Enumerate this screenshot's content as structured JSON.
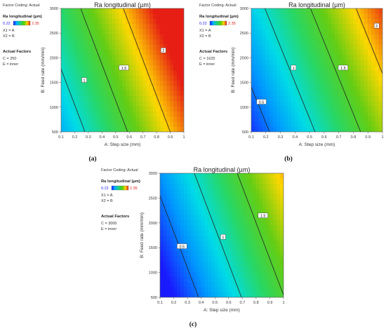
{
  "chart_data": [
    {
      "type": "heatmap",
      "panel_label": "(a)",
      "title": "Ra longitudinal (µm)",
      "factor_coding": "Factor Coding: Actual",
      "legend": {
        "title": "Ra longitudinal (µm)",
        "min": "0.22",
        "max": "2.35",
        "min_color": "#1a1aff",
        "max_color": "#e02020",
        "factor_lines": [
          "X1 = A",
          "X2 = B"
        ]
      },
      "actual_factors": {
        "title": "Actual Factors",
        "lines": [
          "C = 250",
          "E = inner"
        ]
      },
      "xlabel": "A: Step size (mm)",
      "ylabel": "B: Feed rate (mm/min)",
      "xlim": [
        0.1,
        1
      ],
      "ylim": [
        500,
        3000
      ],
      "xticks": [
        "0.1",
        "0.2",
        "0.3",
        "0.4",
        "0.5",
        "0.6",
        "0.7",
        "0.8",
        "0.9",
        "1"
      ],
      "yticks": [
        "500",
        "1000",
        "1500",
        "2000",
        "2500",
        "3000"
      ],
      "color_model": {
        "a": 0.72,
        "bx": 1.6,
        "by": 0.00022,
        "zmin": 0.22,
        "zmax": 2.35
      },
      "contours": [
        {
          "value": 1.0,
          "label": "1"
        },
        {
          "value": 1.5,
          "label": "1.5"
        },
        {
          "value": 2.0,
          "label": "2"
        }
      ],
      "contour_labels": [
        {
          "label": "1",
          "x": 0.27,
          "y": 1550
        },
        {
          "label": "1.5",
          "x": 0.56,
          "y": 1800
        },
        {
          "label": "2",
          "x": 0.85,
          "y": 2150
        }
      ]
    },
    {
      "type": "heatmap",
      "panel_label": "(b)",
      "title": "Ra longitudinal (µm)",
      "factor_coding": "Factor Coding: Actual",
      "legend": {
        "title": "Ra longitudinal (µm)",
        "min": "0.22",
        "max": "2.35",
        "min_color": "#1a1aff",
        "max_color": "#e02020",
        "factor_lines": [
          "X1 = A",
          "X2 = B"
        ]
      },
      "actual_factors": {
        "title": "Actual Factors",
        "lines": [
          "C = 1625",
          "E = inner"
        ]
      },
      "xlabel": "A: Step size (mm)",
      "ylabel": "B: Feed rate (mm/min)",
      "xlim": [
        0.1,
        1
      ],
      "ylim": [
        500,
        3000
      ],
      "xticks": [
        "0.1",
        "0.2",
        "0.3",
        "0.4",
        "0.5",
        "0.6",
        "0.7",
        "0.8",
        "0.9",
        "1"
      ],
      "yticks": [
        "500",
        "1000",
        "1500",
        "2000",
        "2500",
        "3000"
      ],
      "color_model": {
        "a": 0.3,
        "bx": 1.6,
        "by": 0.00022,
        "zmin": 0.22,
        "zmax": 2.35
      },
      "contours": [
        {
          "value": 0.5,
          "label": "0.5"
        },
        {
          "value": 1.0,
          "label": "1"
        },
        {
          "value": 1.5,
          "label": "1.5"
        },
        {
          "value": 2.0,
          "label": "2"
        }
      ],
      "contour_labels": [
        {
          "label": "0.5",
          "x": 0.17,
          "y": 1110
        },
        {
          "label": "1",
          "x": 0.39,
          "y": 1800
        },
        {
          "label": "1.5",
          "x": 0.73,
          "y": 1800
        },
        {
          "label": "2",
          "x": 0.96,
          "y": 2650
        }
      ]
    },
    {
      "type": "heatmap",
      "panel_label": "(c)",
      "title": "Ra longitudinal (µm)",
      "factor_coding": "Factor Coding: Actual",
      "legend": {
        "title": "Ra longitudinal (µm)",
        "min": "0.22",
        "max": "2.35",
        "min_color": "#1a1aff",
        "max_color": "#e02020",
        "factor_lines": [
          "X1 = A",
          "X2 = B"
        ]
      },
      "actual_factors": {
        "title": "Actual Factors",
        "lines": [
          "C = 3000",
          "E = inner"
        ]
      },
      "xlabel": "A: Step size (mm)",
      "ylabel": "B: Feed rate (mm/min)",
      "xlim": [
        0.1,
        1
      ],
      "ylim": [
        500,
        3000
      ],
      "xticks": [
        "0.1",
        "0.2",
        "0.3",
        "0.4",
        "0.5",
        "0.6",
        "0.7",
        "0.8",
        "0.9",
        "1"
      ],
      "yticks": [
        "500",
        "1000",
        "1500",
        "2000",
        "2500",
        "3000"
      ],
      "color_model": {
        "a": 0.05,
        "bx": 1.6,
        "by": 0.00022,
        "zmin": 0.22,
        "zmax": 2.35
      },
      "contours": [
        {
          "value": 0.5,
          "label": "0.5"
        },
        {
          "value": 1.0,
          "label": "1"
        },
        {
          "value": 1.5,
          "label": "1.5"
        }
      ],
      "contour_labels": [
        {
          "label": "0.5",
          "x": 0.26,
          "y": 1530
        },
        {
          "label": "1",
          "x": 0.56,
          "y": 1720
        },
        {
          "label": "1.5",
          "x": 0.85,
          "y": 2150
        }
      ]
    }
  ]
}
